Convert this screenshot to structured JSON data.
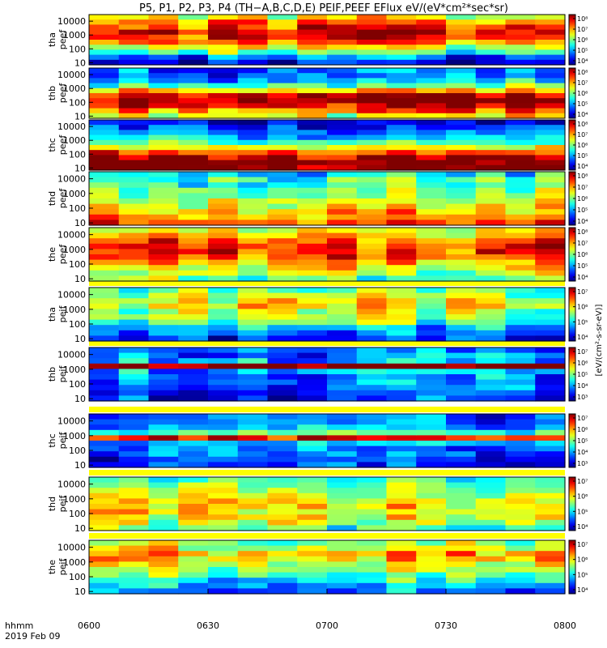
{
  "title": "P5, P1, P2, P3, P4 (TH−A,B,C,D,E) PEIF,PEEF EFlux eV/(eV*cm²*sec*sr)",
  "x_axis": {
    "row_label": "hhmm",
    "date_label": "2019 Feb 09",
    "ticks": [
      "0600",
      "0630",
      "0700",
      "0730",
      "0800"
    ]
  },
  "colorbar_label": "[eV/(cm²-s-sr-eV)]",
  "chart_data": [
    {
      "type": "heatmap",
      "ylabel": [
        "tha",
        "peef"
      ],
      "yscale": "log",
      "yticks": [
        "10000",
        "1000",
        "100",
        "10"
      ],
      "ylim": [
        7,
        30000
      ],
      "profile": [
        1,
        3,
        6,
        8,
        10,
        11,
        12,
        11,
        10,
        8
      ],
      "time_columns": 16,
      "colorbar_ticks": [
        "10⁸",
        "10⁷",
        "10⁶",
        "10⁵",
        "10⁴"
      ],
      "colorbar_range": [
        3,
        8
      ]
    },
    {
      "type": "heatmap",
      "ylabel": [
        "thb",
        "peef"
      ],
      "yscale": "log",
      "yticks": [
        "10000",
        "1000",
        "100",
        "10"
      ],
      "ylim": [
        7,
        30000
      ],
      "profile": [
        8,
        10,
        12,
        13,
        12,
        9,
        6,
        4,
        3,
        3
      ],
      "time_columns": 16,
      "colorbar_ticks": [
        "10⁸",
        "10⁷",
        "10⁶",
        "10⁵",
        "10⁴"
      ],
      "colorbar_range": [
        3,
        8
      ]
    },
    {
      "type": "heatmap",
      "ylabel": [
        "thc",
        "peef"
      ],
      "yscale": "log",
      "yticks": [
        "10000",
        "1000",
        "100",
        "10"
      ],
      "ylim": [
        7,
        30000
      ],
      "profile": [
        13,
        13,
        12,
        10,
        8,
        6,
        4,
        3,
        2,
        1
      ],
      "time_columns": 16,
      "colorbar_ticks": [
        "10⁸",
        "10⁷",
        "10⁶",
        "10⁵",
        "10⁴"
      ],
      "colorbar_range": [
        3,
        8
      ]
    },
    {
      "type": "heatmap",
      "ylabel": [
        "thd",
        "peef"
      ],
      "yscale": "log",
      "yticks": [
        "10000",
        "1000",
        "100",
        "10"
      ],
      "ylim": [
        7,
        30000
      ],
      "profile": [
        11,
        10,
        9,
        8,
        8,
        7,
        7,
        6,
        6,
        5
      ],
      "time_columns": 16,
      "colorbar_ticks": [
        "10⁸",
        "10⁷",
        "10⁶",
        "10⁵",
        "10⁴"
      ],
      "colorbar_range": [
        3,
        8
      ]
    },
    {
      "type": "heatmap",
      "ylabel": [
        "the",
        "peef"
      ],
      "yscale": "log",
      "yticks": [
        "10000",
        "1000",
        "100",
        "10"
      ],
      "ylim": [
        7,
        30000
      ],
      "profile": [
        6,
        7,
        8,
        9,
        10,
        11,
        11,
        10,
        9,
        8
      ],
      "time_columns": 16,
      "colorbar_ticks": [
        "10⁸",
        "10⁷",
        "10⁶",
        "10⁵",
        "10⁴"
      ],
      "colorbar_range": [
        3,
        8
      ]
    },
    {
      "type": "heatmap",
      "ylabel": [
        "tha",
        "peif"
      ],
      "yscale": "log",
      "yticks": [
        "10000",
        "1000",
        "100",
        "10"
      ],
      "ylim": [
        7,
        30000
      ],
      "profile": [
        2,
        3,
        4,
        6,
        7,
        7,
        8,
        8,
        7,
        6
      ],
      "time_columns": 16,
      "colorbar_ticks": [
        "10⁷",
        "10⁶",
        "10⁵",
        "10⁴"
      ],
      "colorbar_range": [
        3.5,
        7.5
      ]
    },
    {
      "type": "heatmap",
      "ylabel": [
        "thb",
        "peif"
      ],
      "yscale": "log",
      "yticks": [
        "10000",
        "1000",
        "100",
        "10"
      ],
      "ylim": [
        7,
        30000
      ],
      "profile": [
        2,
        2,
        3,
        3,
        3,
        4,
        13,
        4,
        3,
        3
      ],
      "time_columns": 16,
      "colorbar_ticks": [
        "10⁷",
        "10⁶",
        "10⁵",
        "10⁴",
        "10³"
      ],
      "colorbar_range": [
        3,
        7.5
      ]
    },
    {
      "type": "heatmap",
      "ylabel": [
        "thc",
        "peif"
      ],
      "yscale": "log",
      "yticks": [
        "10000",
        "1000",
        "100",
        "10"
      ],
      "ylim": [
        7,
        30000
      ],
      "profile": [
        2,
        2,
        3,
        3,
        4,
        11,
        6,
        4,
        3,
        3
      ],
      "time_columns": 16,
      "colorbar_ticks": [
        "10⁷",
        "10⁶",
        "10⁵",
        "10⁴",
        "10³"
      ],
      "colorbar_range": [
        3,
        7.5
      ]
    },
    {
      "type": "heatmap",
      "ylabel": [
        "thd",
        "peif"
      ],
      "yscale": "log",
      "yticks": [
        "10000",
        "1000",
        "100",
        "10"
      ],
      "ylim": [
        7,
        30000
      ],
      "profile": [
        6,
        7,
        8,
        8,
        8,
        8,
        7,
        7,
        6,
        5
      ],
      "time_columns": 16,
      "colorbar_ticks": [
        "10⁷",
        "10⁶",
        "10⁵",
        "10⁴"
      ],
      "colorbar_range": [
        3.5,
        7.5
      ]
    },
    {
      "type": "heatmap",
      "ylabel": [
        "the",
        "peif"
      ],
      "yscale": "log",
      "yticks": [
        "10000",
        "1000",
        "100",
        "10"
      ],
      "ylim": [
        7,
        30000
      ],
      "profile": [
        3,
        4,
        5,
        6,
        7,
        8,
        9,
        9,
        8,
        7
      ],
      "time_columns": 16,
      "colorbar_ticks": [
        "10⁷",
        "10⁶",
        "10⁵",
        "10⁴"
      ],
      "colorbar_range": [
        3.5,
        7.5
      ]
    }
  ]
}
